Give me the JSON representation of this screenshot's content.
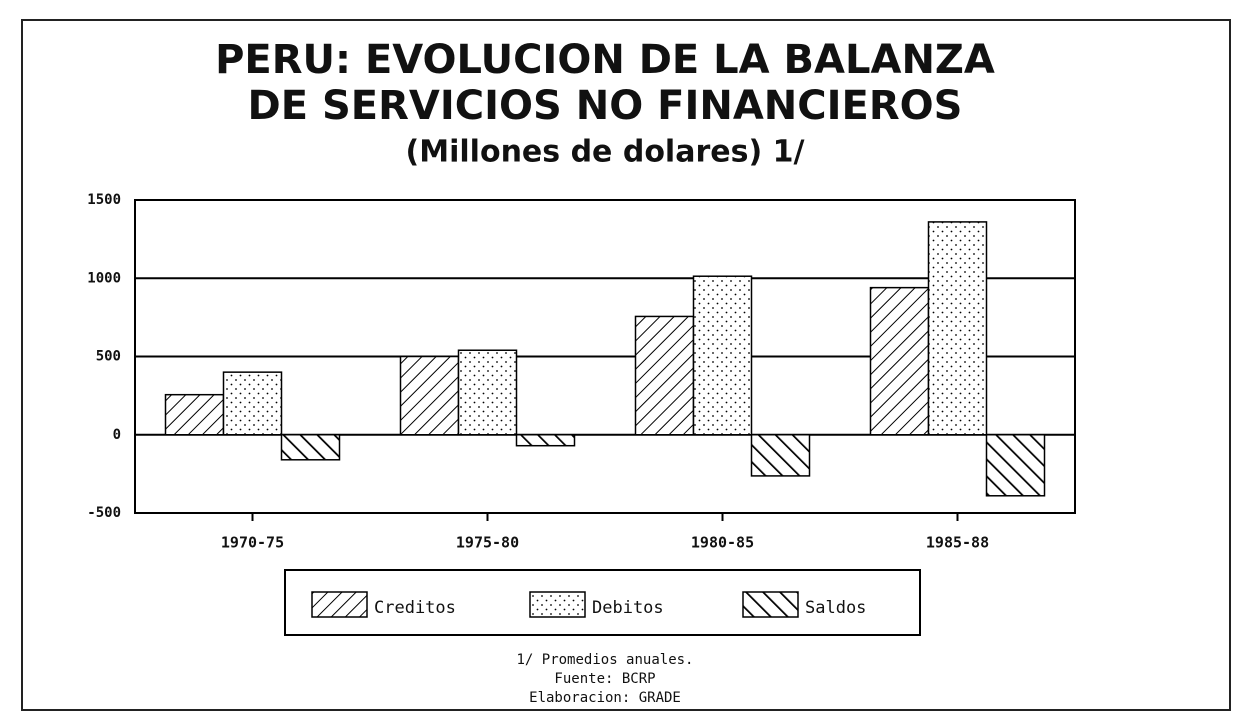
{
  "chart_data": {
    "type": "bar",
    "title": [
      "PERU: EVOLUCION DE LA BALANZA",
      "DE SERVICIOS NO FINANCIEROS"
    ],
    "subtitle": "(Millones de dolares) 1/",
    "categories": [
      "1970-75",
      "1975-80",
      "1980-85",
      "1985-88"
    ],
    "series": [
      {
        "name": "Creditos",
        "color": "#000000",
        "pattern": "hatch",
        "values": [
          256,
          500,
          756,
          940
        ]
      },
      {
        "name": "Debitos",
        "color": "#000000",
        "pattern": "dots",
        "values": [
          400,
          540,
          1013,
          1360
        ]
      },
      {
        "name": "Saldos",
        "color": "#000000",
        "pattern": "backhatch",
        "values": [
          -160,
          -70,
          -263,
          -390
        ]
      }
    ],
    "ylim": [
      -500,
      1500
    ],
    "yticks": [
      -500,
      0,
      500,
      1000,
      1500
    ],
    "grid": true,
    "notes": [
      "1/  Promedios anuales.",
      "Fuente:  BCRP",
      "Elaboracion:  GRADE"
    ]
  }
}
